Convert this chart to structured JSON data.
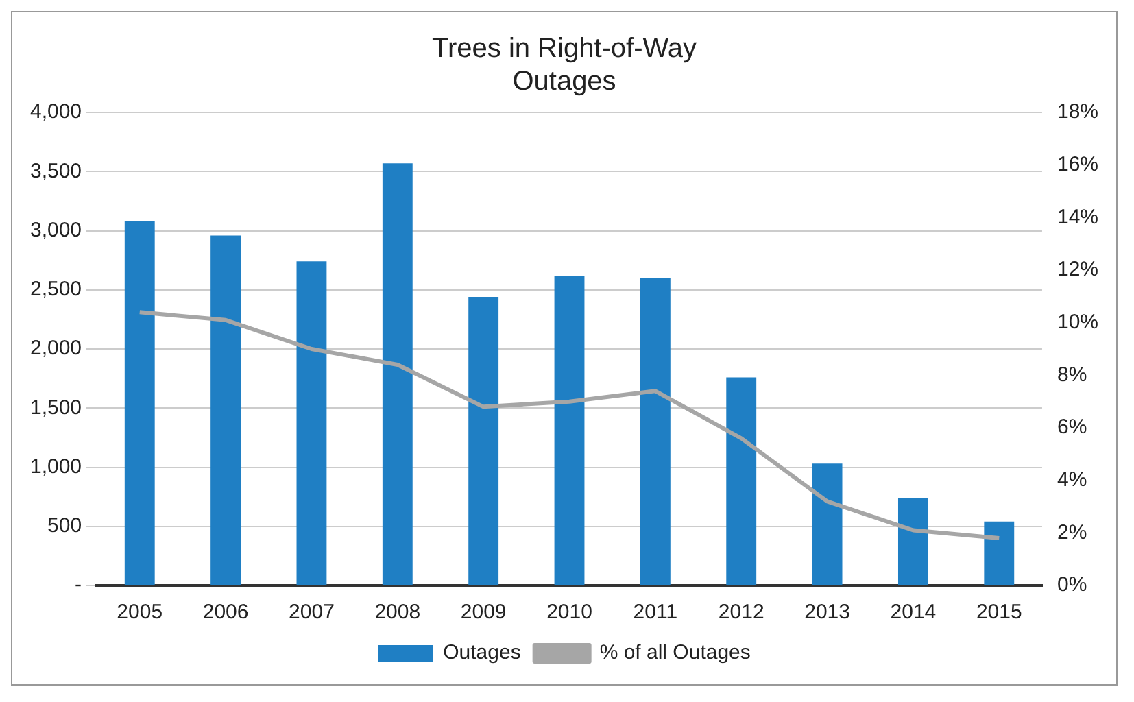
{
  "chart_data": {
    "type": "bar",
    "title": [
      "Trees in Right-of-Way",
      "Outages"
    ],
    "categories": [
      "2005",
      "2006",
      "2007",
      "2008",
      "2009",
      "2010",
      "2011",
      "2012",
      "2013",
      "2014",
      "2015"
    ],
    "series": [
      {
        "name": "Outages",
        "color": "#1f7fc4",
        "values": [
          3080,
          2960,
          2740,
          3570,
          2440,
          2620,
          2600,
          1760,
          1030,
          740,
          540
        ]
      },
      {
        "name": "% of all Outages",
        "type": "line",
        "axis": "y2",
        "color": "#a6a6a6",
        "values": [
          10.4,
          10.1,
          9.0,
          8.4,
          6.8,
          7.0,
          7.4,
          5.6,
          3.2,
          2.1,
          1.8
        ]
      }
    ],
    "ylim": [
      0,
      4000
    ],
    "yticks": [
      {
        "value": 0,
        "label": "-"
      },
      {
        "value": 500,
        "label": "500"
      },
      {
        "value": 1000,
        "label": "1,000"
      },
      {
        "value": 1500,
        "label": "1,500"
      },
      {
        "value": 2000,
        "label": "2,000"
      },
      {
        "value": 2500,
        "label": "2,500"
      },
      {
        "value": 3000,
        "label": "3,000"
      },
      {
        "value": 3500,
        "label": "3,500"
      },
      {
        "value": 4000,
        "label": "4,000"
      }
    ],
    "y2lim": [
      0,
      18
    ],
    "y2ticks": [
      {
        "value": 0,
        "label": "0%"
      },
      {
        "value": 2,
        "label": "2%"
      },
      {
        "value": 4,
        "label": "4%"
      },
      {
        "value": 6,
        "label": "6%"
      },
      {
        "value": 8,
        "label": "8%"
      },
      {
        "value": 10,
        "label": "10%"
      },
      {
        "value": 12,
        "label": "12%"
      },
      {
        "value": 14,
        "label": "14%"
      },
      {
        "value": 16,
        "label": "16%"
      },
      {
        "value": 18,
        "label": "18%"
      }
    ],
    "grid": "y",
    "legend": "bottom",
    "marker": "none"
  }
}
